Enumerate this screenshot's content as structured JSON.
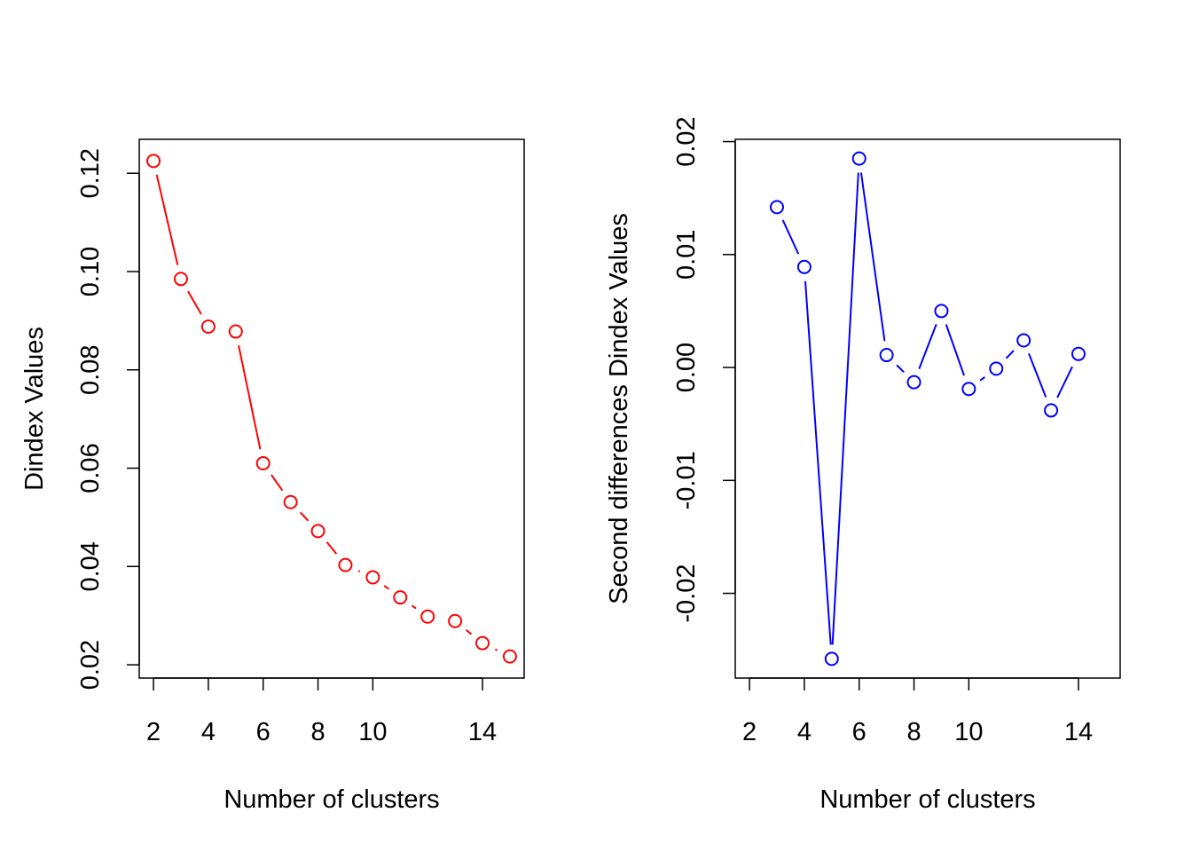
{
  "chart_data": [
    {
      "type": "line",
      "title": "",
      "xlabel": "Number of clusters",
      "ylabel": "Dindex Values",
      "color": "#ff0000",
      "x": [
        2,
        3,
        4,
        5,
        6,
        7,
        8,
        9,
        10,
        11,
        12,
        13,
        14,
        15
      ],
      "values": [
        0.1225,
        0.0985,
        0.0888,
        0.0878,
        0.061,
        0.0531,
        0.0472,
        0.0403,
        0.0378,
        0.0337,
        0.0298,
        0.0289,
        0.0244,
        0.0217
      ],
      "xlim": [
        1.48,
        15.52
      ],
      "ylim": [
        0.0173,
        0.1269
      ],
      "xticks": [
        2,
        4,
        6,
        8,
        10,
        14
      ],
      "xtick_labels": [
        "2",
        "4",
        "6",
        "8",
        "10",
        "14"
      ],
      "yticks": [
        0.02,
        0.04,
        0.06,
        0.08,
        0.1,
        0.12
      ],
      "ytick_labels": [
        "0.02",
        "0.04",
        "0.06",
        "0.08",
        "0.10",
        "0.12"
      ],
      "grid": false
    },
    {
      "type": "line",
      "title": "",
      "xlabel": "Number of clusters",
      "ylabel": "Second differences Dindex Values",
      "color": "#0000ff",
      "x": [
        3,
        4,
        5,
        6,
        7,
        8,
        9,
        10,
        11,
        12,
        13,
        14
      ],
      "values": [
        0.0142,
        0.0089,
        -0.0258,
        0.0185,
        0.0011,
        -0.0013,
        0.005,
        -0.0019,
        -0.0001,
        0.0024,
        -0.0038,
        0.0012
      ],
      "xlim": [
        1.48,
        15.52
      ],
      "ylim": [
        -0.0275,
        0.0202
      ],
      "xticks": [
        2,
        4,
        6,
        8,
        10,
        14
      ],
      "xtick_labels": [
        "2",
        "4",
        "6",
        "8",
        "10",
        "14"
      ],
      "yticks": [
        -0.02,
        -0.01,
        0.0,
        0.01,
        0.02
      ],
      "ytick_labels": [
        "-0.02",
        "-0.01",
        "0.00",
        "0.01",
        "0.02"
      ],
      "grid": false
    }
  ]
}
